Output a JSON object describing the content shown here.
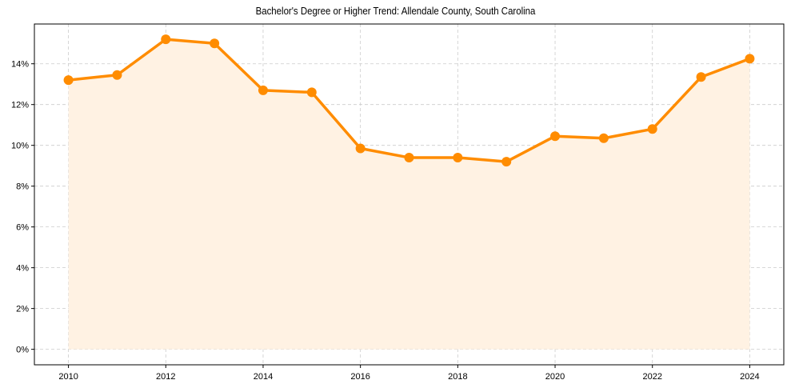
{
  "chart_data": {
    "type": "line",
    "title": "Bachelor's Degree or Higher Trend: Allendale County, South Carolina",
    "xlabel": "",
    "ylabel": "",
    "x": [
      2010,
      2011,
      2012,
      2013,
      2014,
      2015,
      2016,
      2017,
      2018,
      2019,
      2020,
      2021,
      2022,
      2023,
      2024
    ],
    "series": [
      {
        "name": "Bachelor's Degree or Higher",
        "values": [
          13.2,
          13.45,
          15.2,
          15.0,
          12.7,
          12.6,
          9.85,
          9.4,
          9.4,
          9.2,
          10.45,
          10.35,
          10.8,
          13.35,
          14.25
        ],
        "color": "#FF8C00",
        "fill_color": "#FFF2E3",
        "marker": "circle"
      }
    ],
    "xticks": [
      2010,
      2012,
      2014,
      2016,
      2018,
      2020,
      2022,
      2024
    ],
    "xtick_labels": [
      "2010",
      "2012",
      "2014",
      "2016",
      "2018",
      "2020",
      "2022",
      "2024"
    ],
    "yticks": [
      0,
      2,
      4,
      6,
      8,
      10,
      12,
      14
    ],
    "ytick_labels": [
      "0%",
      "2%",
      "4%",
      "6%",
      "8%",
      "10%",
      "12%",
      "14%"
    ],
    "xlim": [
      2009.3,
      2024.7
    ],
    "ylim": [
      -0.76,
      15.95
    ],
    "grid": true,
    "grid_style": "dashed",
    "legend": null,
    "area_fill": true
  }
}
